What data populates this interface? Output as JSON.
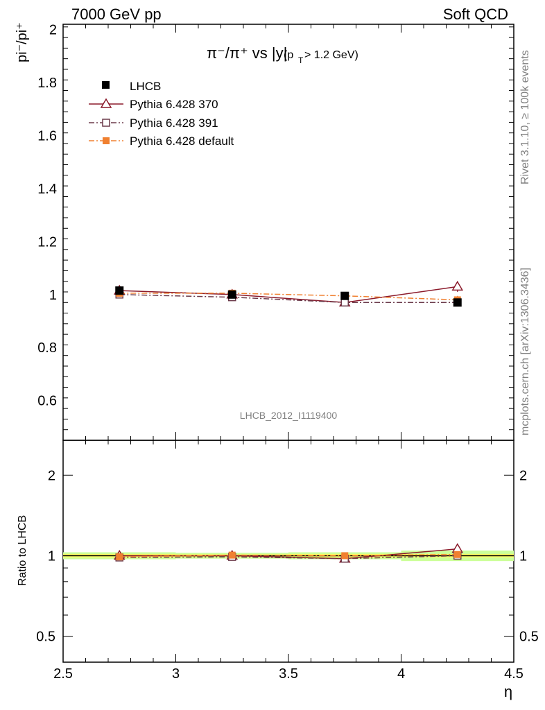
{
  "header": {
    "left_label": "7000 GeV pp",
    "right_label": "Soft QCD"
  },
  "side": {
    "rivet_label": "Rivet 3.1.10, ≥ 100k events",
    "mcplots_label": "mcplots.cern.ch [arXiv:1306.3436]"
  },
  "plot_title": {
    "main": "π⁻/π⁺ vs |y|",
    "cut": "(p",
    "cut_sub": "T",
    "cut_rest": " > 1.2 GeV)"
  },
  "watermark": "LHCB_2012_I1119400",
  "colors": {
    "data": "#000000",
    "pythia370": "#8b1a2b",
    "pythia391": "#6b3a4a",
    "pythia_default": "#f08030",
    "band_inner": "#ffff66",
    "band_outer": "#ccff99"
  },
  "chart_data": [
    {
      "type": "scatter",
      "panel": "main",
      "ylabel": "pi⁻/pi⁺",
      "xlim": [
        2.5,
        4.5
      ],
      "ylim": [
        0.45,
        2.02
      ],
      "yticks": [
        0.6,
        0.8,
        1,
        1.2,
        1.4,
        1.6,
        1.8,
        2
      ],
      "ytick_labels": [
        "0.6",
        "0.8",
        "1",
        "1.2",
        "1.4",
        "1.6",
        "1.8",
        "2"
      ],
      "x": [
        2.75,
        3.25,
        3.75,
        4.25
      ],
      "series": [
        {
          "name": "LHCB",
          "marker": "filled-square",
          "values": [
            1.015,
            1.0,
            0.995,
            0.97
          ],
          "errors": [
            0.015,
            0.012,
            0.015,
            0.015
          ]
        },
        {
          "name": "Pythia 6.428 370",
          "marker": "open-triangle",
          "style": "solid",
          "values": [
            1.015,
            1.0,
            0.97,
            1.03
          ],
          "errors": [
            0.01,
            0.01,
            0.015,
            0.02
          ]
        },
        {
          "name": "Pythia 6.428 391",
          "marker": "open-square",
          "style": "dashdot",
          "values": [
            1.0,
            0.99,
            0.97,
            0.97
          ],
          "errors": [
            0.01,
            0.01,
            0.015,
            0.015
          ]
        },
        {
          "name": "Pythia 6.428 default",
          "marker": "filled-square",
          "style": "dashdot",
          "values": [
            1.005,
            1.005,
            0.995,
            0.98
          ],
          "errors": [
            0.01,
            0.01,
            0.015,
            0.015
          ]
        }
      ],
      "legend_position": "top-left"
    },
    {
      "type": "scatter",
      "panel": "ratio",
      "ylabel": "Ratio to LHCB",
      "xlabel": "η",
      "xlim": [
        2.5,
        4.5
      ],
      "log_y": true,
      "ylim": [
        0.4,
        2.7
      ],
      "yticks": [
        0.5,
        1,
        2
      ],
      "ytick_labels": [
        "0.5",
        "1",
        "2"
      ],
      "xticks": [
        2.5,
        3,
        3.5,
        4,
        4.5
      ],
      "xtick_labels": [
        "2.5",
        "3",
        "3.5",
        "4",
        "4.5"
      ],
      "x": [
        2.75,
        3.25,
        3.75,
        4.25
      ],
      "band_inner": [
        0.015,
        0.012,
        0.015,
        0.015
      ],
      "band_outer": [
        0.03,
        0.025,
        0.03,
        0.045
      ],
      "series": [
        {
          "name": "Pythia 6.428 370",
          "values": [
            1.0,
            1.0,
            0.975,
            1.06
          ]
        },
        {
          "name": "Pythia 6.428 391",
          "values": [
            0.985,
            0.99,
            0.975,
            1.0
          ]
        },
        {
          "name": "Pythia 6.428 default",
          "values": [
            0.99,
            1.005,
            1.0,
            1.01
          ]
        }
      ]
    }
  ]
}
